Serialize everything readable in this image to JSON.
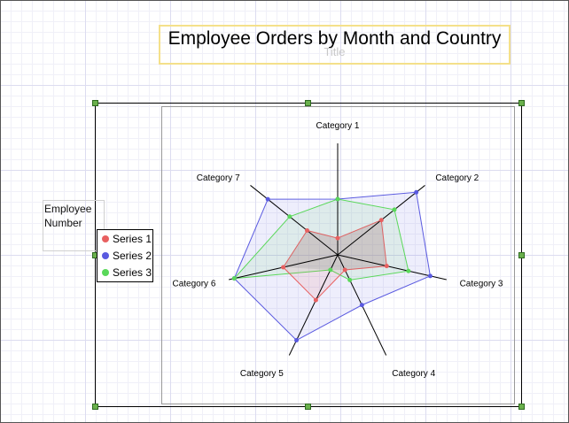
{
  "title": "Employee Orders by Month and Country",
  "title_placeholder": "Title",
  "legend_title": "Employee Number",
  "colors": {
    "series1": "#e86060",
    "series2": "#5a5ae0",
    "series3": "#5ad85a",
    "selection_handle": "#6ab04c",
    "title_border": "#f4e08a"
  },
  "chart_data": {
    "type": "radar",
    "categories": [
      "Category 1",
      "Category 2",
      "Category 3",
      "Category 4",
      "Category 5",
      "Category 6",
      "Category 7"
    ],
    "rmax": 10,
    "series": [
      {
        "name": "Series 1",
        "values": [
          1.5,
          5.0,
          4.5,
          1.5,
          4.5,
          5.0,
          3.5
        ]
      },
      {
        "name": "Series 2",
        "values": [
          5.0,
          9.0,
          8.5,
          5.0,
          8.5,
          9.5,
          8.0
        ]
      },
      {
        "name": "Series 3",
        "values": [
          5.0,
          6.5,
          6.5,
          2.5,
          1.5,
          9.5,
          5.5
        ]
      }
    ],
    "legend_position": "left"
  }
}
